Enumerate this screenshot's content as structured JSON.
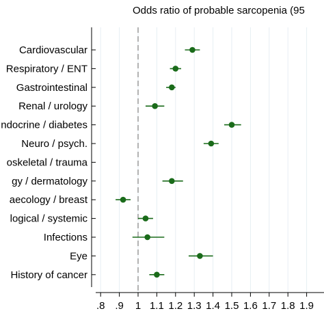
{
  "chart_data": {
    "type": "scatter",
    "title": "Odds ratio of probable sarcopenia (95",
    "xlabel": "",
    "ylabel": "",
    "xlim": [
      0.72,
      1.96
    ],
    "x_ticks": [
      0.8,
      0.9,
      1.0,
      1.1,
      1.2,
      1.3,
      1.4,
      1.5,
      1.6,
      1.7,
      1.8,
      1.9
    ],
    "x_tick_labels": [
      ".8",
      ".9",
      "1",
      "1.1",
      "1.2",
      "1.3",
      "1.4",
      "1.5",
      "1.6",
      "1.7",
      "1.8",
      "1.9"
    ],
    "reference_line": 1.0,
    "grid": true,
    "marker_color": "#1a6b1a",
    "categories": [
      "Cardiovascular",
      "Respiratory / ENT",
      "Gastrointestinal",
      "Renal / urology",
      "ndocrine / diabetes",
      "Neuro / psych.",
      "oskeletal / trauma",
      "gy / dermatology",
      "aecology / breast",
      "logical / systemic",
      "Infections",
      "Eye",
      "History of cancer"
    ],
    "series": [
      {
        "values": [
          1.29,
          1.2,
          1.18,
          1.09,
          1.5,
          1.39,
          null,
          1.18,
          0.92,
          1.04,
          1.05,
          1.33,
          1.1
        ],
        "ci_low": [
          1.25,
          1.17,
          1.15,
          1.04,
          1.46,
          1.35,
          null,
          1.13,
          0.88,
          1.0,
          0.97,
          1.27,
          1.06
        ],
        "ci_high": [
          1.33,
          1.23,
          1.2,
          1.14,
          1.55,
          1.43,
          null,
          1.24,
          0.96,
          1.08,
          1.14,
          1.4,
          1.14
        ]
      }
    ]
  }
}
